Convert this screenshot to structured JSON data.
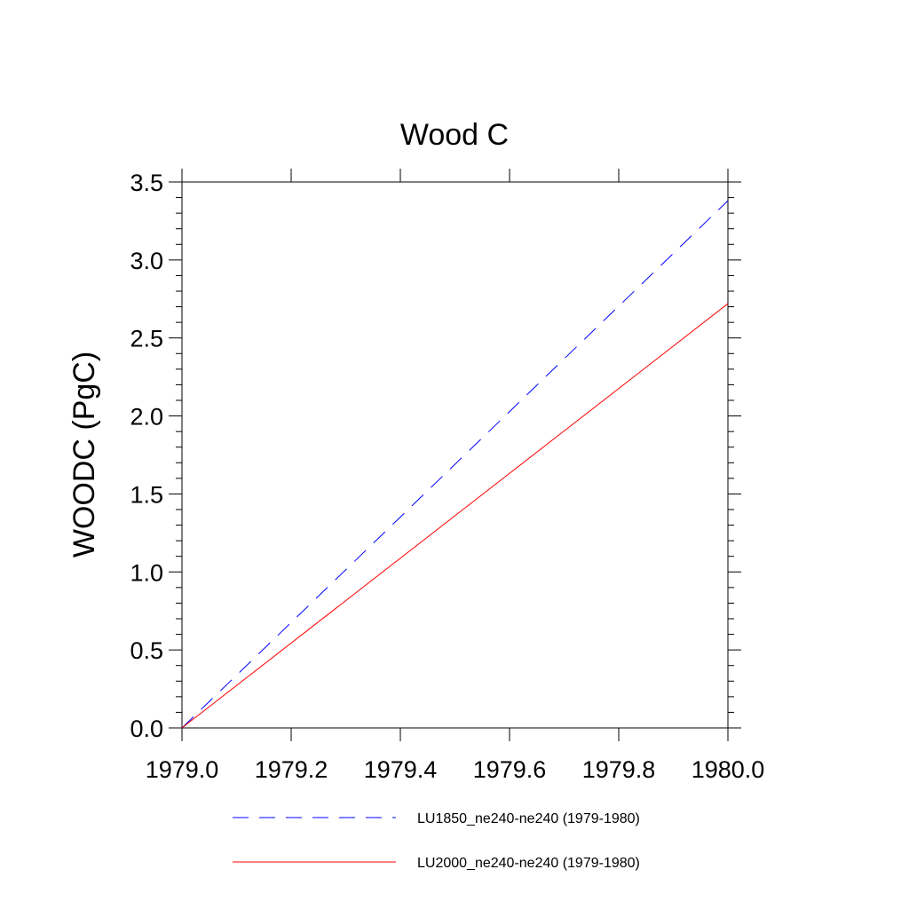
{
  "chart_data": {
    "type": "line",
    "title": "Wood C",
    "ylabel": "WOODC  (PgC)",
    "xlabel": "",
    "xlim": [
      1979.0,
      1980.0
    ],
    "ylim": [
      0.0,
      3.5
    ],
    "xticks": [
      "1979.0",
      "1979.2",
      "1979.4",
      "1979.6",
      "1979.8",
      "1980.0"
    ],
    "yticks": [
      "0.0",
      "0.5",
      "1.0",
      "1.5",
      "2.0",
      "2.5",
      "3.0",
      "3.5"
    ],
    "grid": false,
    "legend_position": "bottom",
    "series": [
      {
        "name": "LU1850_ne240-ne240 (1979-1980)",
        "color": "#0000ff",
        "dash": "dashed",
        "x": [
          1979.0,
          1980.0
        ],
        "y": [
          0.0,
          3.38
        ]
      },
      {
        "name": "LU2000_ne240-ne240 (1979-1980)",
        "color": "#ff0000",
        "dash": "solid",
        "x": [
          1979.0,
          1980.0
        ],
        "y": [
          0.0,
          2.72
        ]
      }
    ]
  }
}
